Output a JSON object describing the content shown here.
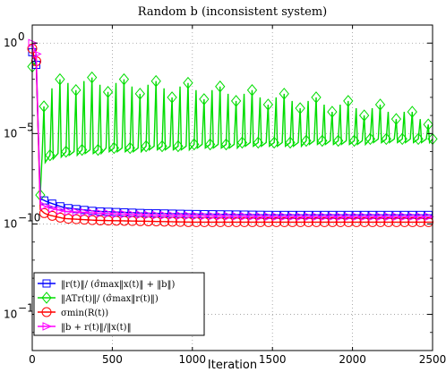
{
  "chart_data": {
    "type": "line",
    "title": "Random b (inconsistent system)",
    "xlabel": "Iteration",
    "ylabel": "",
    "xscale": "linear",
    "yscale": "log",
    "xlim": [
      0,
      2500
    ],
    "ylim_exponent": [
      -17,
      1
    ],
    "x_ticks": [
      0,
      500,
      1000,
      1500,
      2000,
      2500
    ],
    "x_tick_labels": [
      "0",
      "500",
      "1000",
      "1500",
      "2000",
      "2500"
    ],
    "y_ticks_exponent": [
      0,
      -5,
      -10,
      -15
    ],
    "y_tick_labels": [
      "10",
      "10",
      "10",
      "10"
    ],
    "y_tick_superscripts": [
      "0",
      "−5",
      "−10",
      "−15"
    ],
    "grid": true,
    "legend_position": "bottom-left",
    "series": [
      {
        "name": "‖r^(t)‖/(σ̂max‖x^(t)‖+‖b‖)",
        "color": "#0000ff",
        "marker": "square",
        "x": [
          0,
          10,
          25,
          50,
          75,
          100,
          200,
          400,
          700,
          1000,
          1500,
          2000,
          2500
        ],
        "y_log10": [
          -0.5,
          -0.8,
          -1.2,
          -8.6,
          -8.7,
          -8.8,
          -9.1,
          -9.3,
          -9.4,
          -9.45,
          -9.5,
          -9.5,
          -9.5
        ]
      },
      {
        "name": "‖A^T r^(t)‖/(σ̂max‖r^(t)‖)",
        "color": "#00dd00",
        "marker": "diamond",
        "peak_x": [
          75,
          125,
          175,
          225,
          275,
          325,
          375,
          425,
          475,
          525,
          575,
          625,
          675,
          725,
          775,
          825,
          875,
          925,
          975,
          1025,
          1075,
          1125,
          1175,
          1225,
          1275,
          1325,
          1375,
          1425,
          1475,
          1525,
          1575,
          1625,
          1675,
          1725,
          1775,
          1825,
          1875,
          1925,
          1975,
          2025,
          2075,
          2125,
          2175,
          2225,
          2275,
          2325,
          2375,
          2425,
          2475
        ],
        "peak_y_log10": [
          -3.5,
          -2.5,
          -2.0,
          -2.2,
          -2.6,
          -2.1,
          -1.9,
          -2.3,
          -2.7,
          -2.2,
          -2.0,
          -2.4,
          -2.8,
          -2.3,
          -2.1,
          -2.5,
          -3.0,
          -2.4,
          -2.2,
          -2.6,
          -3.1,
          -2.6,
          -2.4,
          -2.8,
          -3.2,
          -2.8,
          -2.6,
          -3.0,
          -3.4,
          -3.0,
          -2.8,
          -3.2,
          -3.6,
          -3.2,
          -3.0,
          -3.4,
          -3.8,
          -3.4,
          -3.2,
          -3.6,
          -4.0,
          -3.6,
          -3.4,
          -3.8,
          -4.2,
          -3.8,
          -3.8,
          -4.2,
          -4.5
        ],
        "trough_y_log10": [
          -6.4,
          -6.2,
          -6.1,
          -6.0,
          -6.0,
          -5.9,
          -5.9,
          -5.9,
          -5.8,
          -5.8,
          -5.8,
          -5.8,
          -5.8,
          -5.7,
          -5.7,
          -5.7,
          -5.7,
          -5.7,
          -5.7,
          -5.6,
          -5.6,
          -5.6,
          -5.6,
          -5.6,
          -5.6,
          -5.5,
          -5.5,
          -5.5,
          -5.5,
          -5.5,
          -5.5,
          -5.5,
          -5.5,
          -5.4,
          -5.4,
          -5.4,
          -5.4,
          -5.4,
          -5.4,
          -5.4,
          -5.4,
          -5.3,
          -5.3,
          -5.3,
          -5.3,
          -5.3,
          -5.3,
          -5.3,
          -5.3
        ],
        "start_x": [
          0,
          25,
          50,
          60
        ],
        "start_y_log10": [
          -1.3,
          -1.0,
          -8.4,
          -6.5
        ]
      },
      {
        "name": "σmin(R^(t))",
        "color": "#ff0000",
        "marker": "circle",
        "x": [
          0,
          10,
          25,
          50,
          75,
          100,
          200,
          400,
          700,
          1000,
          1500,
          2000,
          2500
        ],
        "y_log10": [
          -0.3,
          -0.7,
          -1.0,
          -9.2,
          -9.4,
          -9.5,
          -9.7,
          -9.8,
          -9.85,
          -9.9,
          -9.9,
          -9.9,
          -9.9
        ]
      },
      {
        "name": "‖b+r^(t)‖/‖x^(t)‖",
        "color": "#ff00ff",
        "marker": "triangle-right",
        "x": [
          0,
          10,
          25,
          50,
          75,
          100,
          200,
          400,
          700,
          1000,
          1500,
          2000,
          2500
        ],
        "y_log10": [
          0.0,
          -0.3,
          -0.6,
          -8.9,
          -9.0,
          -9.1,
          -9.3,
          -9.4,
          -9.5,
          -9.55,
          -9.6,
          -9.6,
          -9.6
        ]
      }
    ],
    "legend_labels": [
      "‖r(t)‖/ (σ̂max‖x(t)‖ + ‖b‖)",
      "‖ATr(t)‖/ (σ̂max‖r(t)‖)",
      "σmin(R(t))",
      "‖b + r(t)‖/‖x(t)‖"
    ]
  }
}
